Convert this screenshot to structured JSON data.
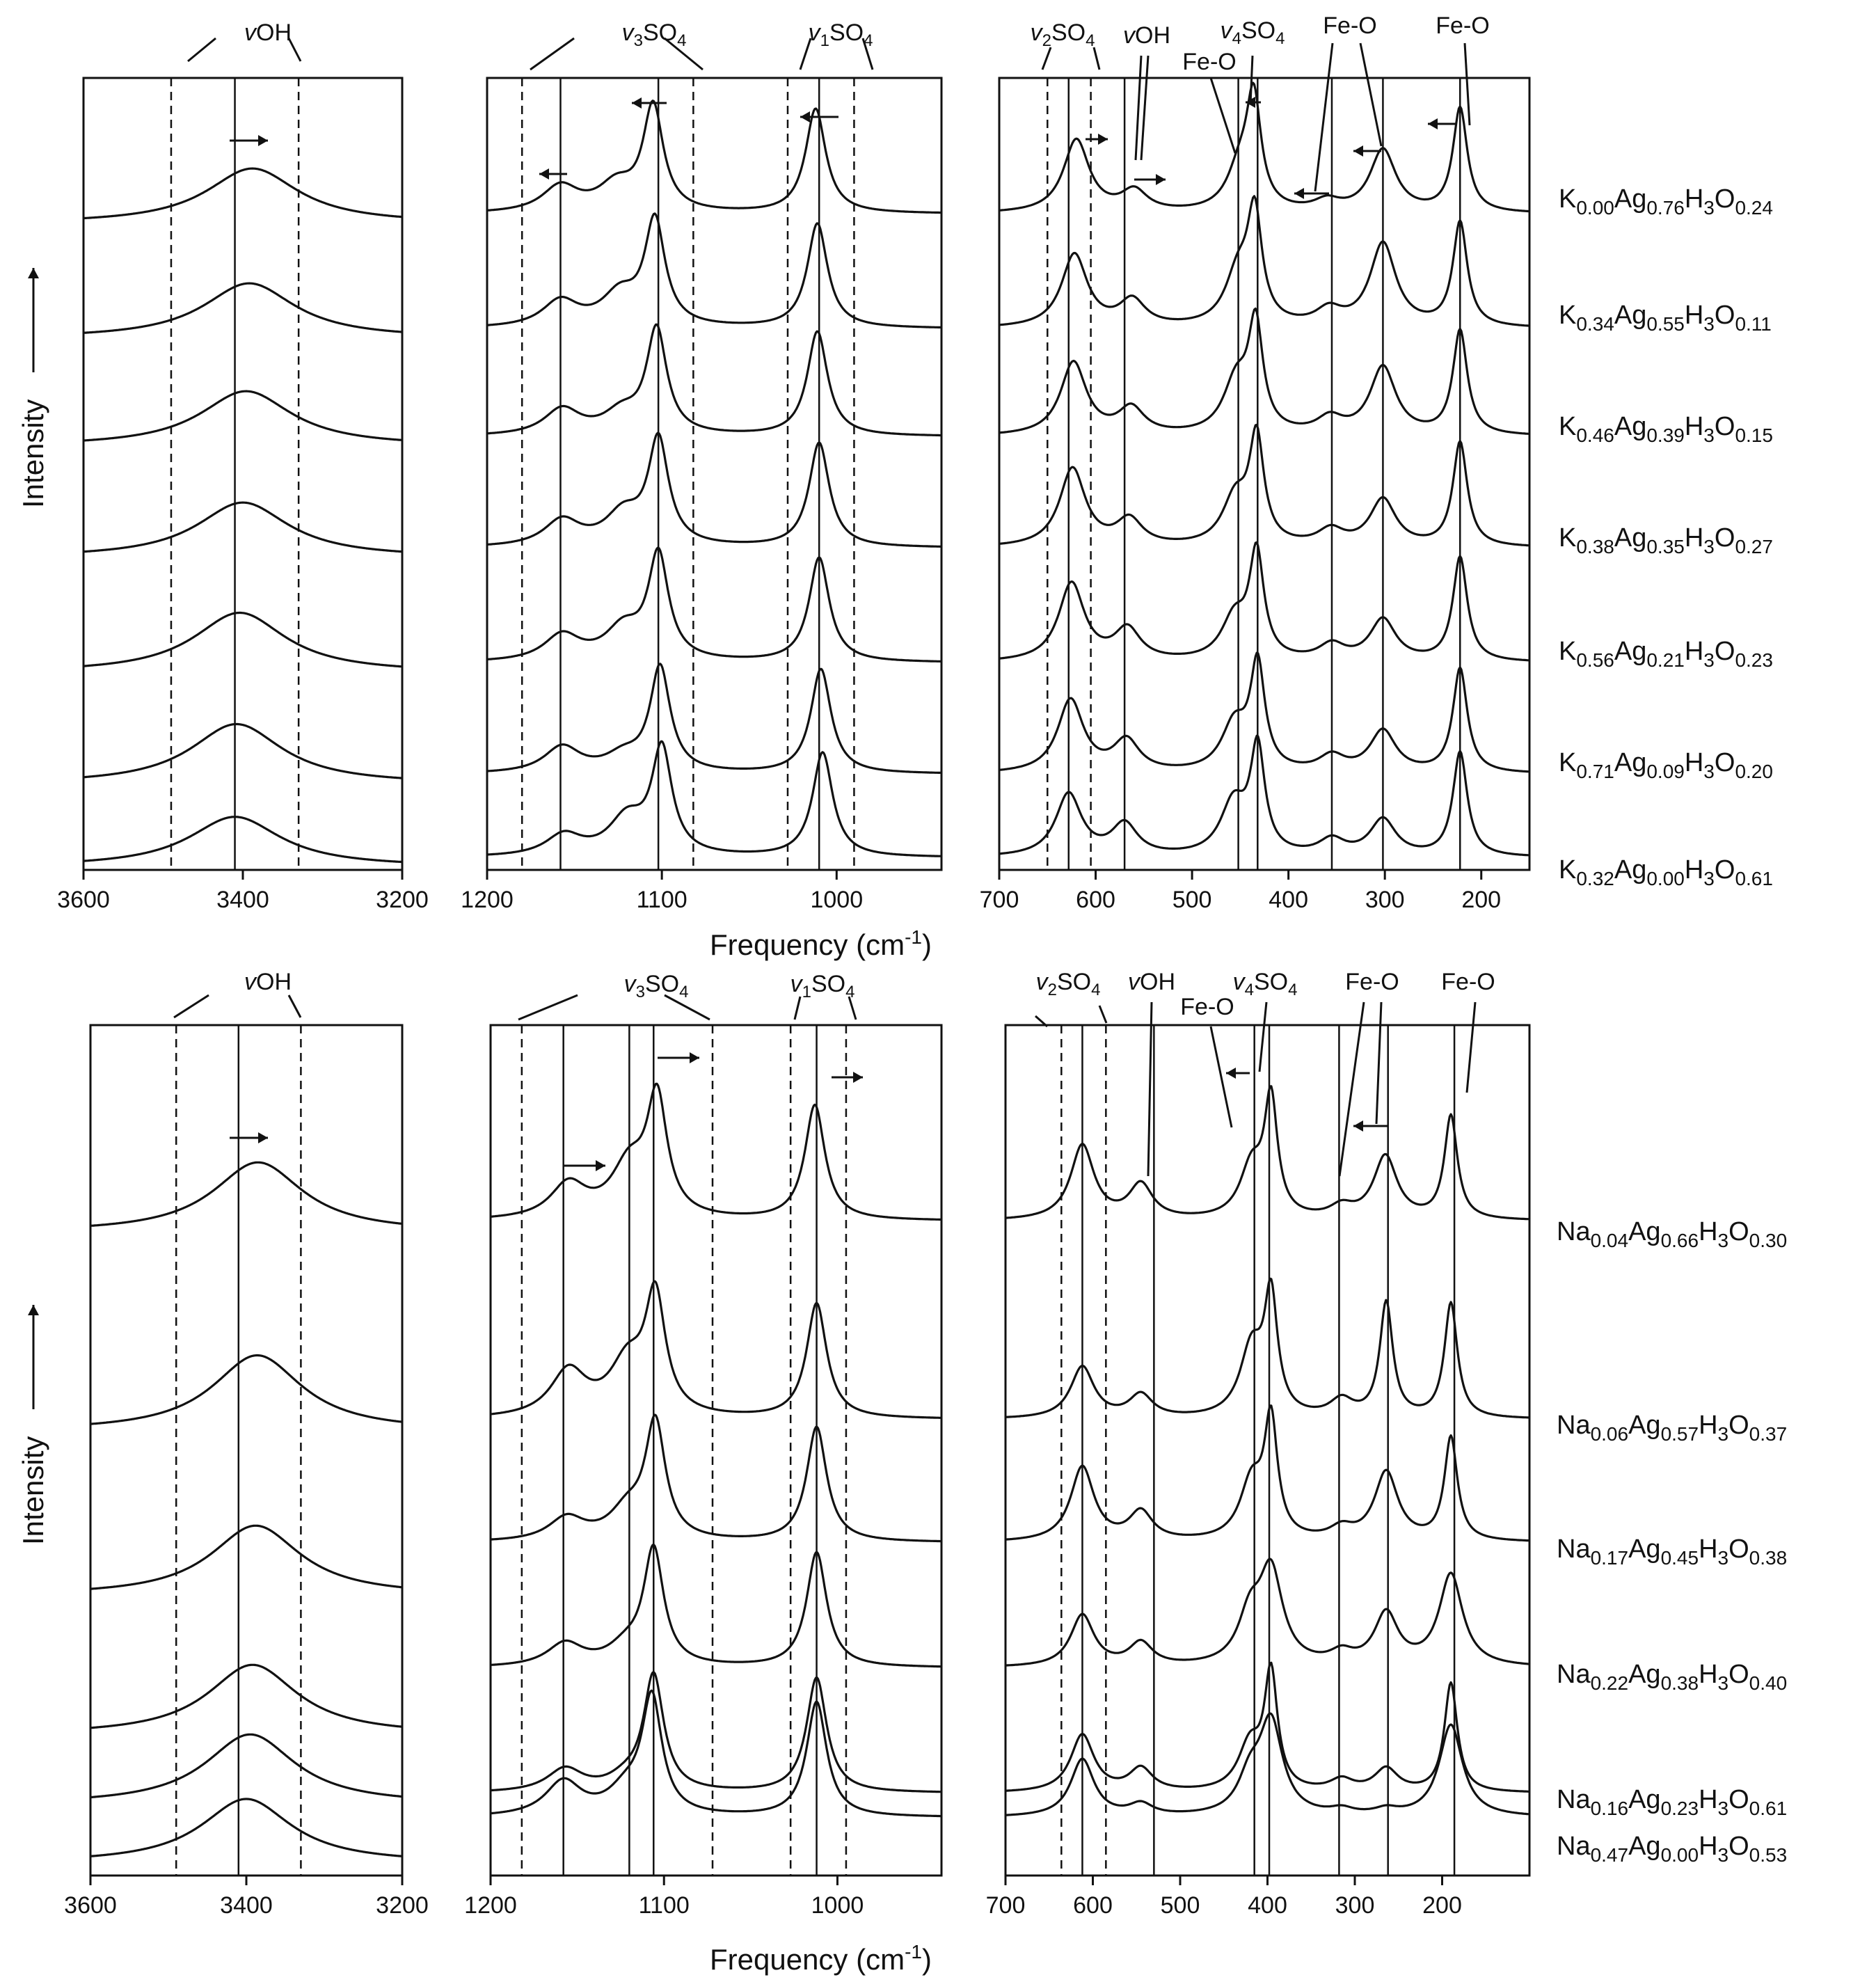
{
  "figure": {
    "x_axis_label": "Frequency (cm",
    "x_axis_label_sup": "-1",
    "x_axis_label_end": ")",
    "y_axis_label": "Intensity"
  },
  "chart_data": [
    {
      "type": "line",
      "group": "K",
      "panel": "vOH",
      "xlim": [
        3600,
        3200
      ],
      "ticks": [
        3600,
        3400,
        3200
      ],
      "solid_lines": [
        3410
      ],
      "dashed_lines": [
        3490,
        3330
      ],
      "series": [
        {
          "center": 3388,
          "height": 0.55
        },
        {
          "center": 3392,
          "height": 0.55
        },
        {
          "center": 3396,
          "height": 0.55
        },
        {
          "center": 3400,
          "height": 0.55
        },
        {
          "center": 3404,
          "height": 0.6
        },
        {
          "center": 3408,
          "height": 0.6
        },
        {
          "center": 3410,
          "height": 0.5
        }
      ]
    },
    {
      "type": "line",
      "group": "K",
      "panel": "SO4 stretch",
      "xlim": [
        1200,
        940
      ],
      "ticks": [
        1200,
        1100,
        1000
      ],
      "solid_lines": [
        1158,
        1102,
        1010
      ],
      "dashed_lines": [
        1180,
        1082,
        1028,
        990
      ],
      "series": [
        {
          "peaks": [
            [
              1158,
              0.25
            ],
            [
              1126,
              0.25
            ],
            [
              1105,
              1.0
            ],
            [
              1012,
              1.0
            ]
          ]
        },
        {
          "peaks": [
            [
              1158,
              0.25
            ],
            [
              1124,
              0.3
            ],
            [
              1104,
              1.0
            ],
            [
              1011,
              1.0
            ]
          ]
        },
        {
          "peaks": [
            [
              1157,
              0.25
            ],
            [
              1123,
              0.2
            ],
            [
              1103,
              1.0
            ],
            [
              1011,
              1.0
            ]
          ]
        },
        {
          "peaks": [
            [
              1157,
              0.25
            ],
            [
              1122,
              0.3
            ],
            [
              1102,
              1.0
            ],
            [
              1010,
              1.0
            ]
          ]
        },
        {
          "peaks": [
            [
              1157,
              0.25
            ],
            [
              1122,
              0.3
            ],
            [
              1102,
              1.0
            ],
            [
              1010,
              1.0
            ]
          ]
        },
        {
          "peaks": [
            [
              1157,
              0.25
            ],
            [
              1122,
              0.15
            ],
            [
              1101,
              1.0
            ],
            [
              1009,
              1.0
            ]
          ]
        },
        {
          "peaks": [
            [
              1156,
              0.2
            ],
            [
              1120,
              0.35
            ],
            [
              1100,
              1.0
            ],
            [
              1008,
              1.0
            ]
          ]
        }
      ]
    },
    {
      "type": "line",
      "group": "K",
      "panel": "lattice",
      "xlim": [
        700,
        150
      ],
      "ticks": [
        700,
        600,
        500,
        400,
        300,
        200
      ],
      "solid_lines": [
        628,
        570,
        452,
        432,
        355,
        302,
        222
      ],
      "dashed_lines": [
        650,
        605
      ],
      "series": [
        {
          "peaks": [
            [
              620,
              0.7
            ],
            [
              560,
              0.2
            ],
            [
              450,
              0.4
            ],
            [
              436,
              1.0
            ],
            [
              360,
              0.1
            ],
            [
              302,
              0.6
            ],
            [
              222,
              1.0
            ]
          ]
        },
        {
          "peaks": [
            [
              622,
              0.7
            ],
            [
              562,
              0.25
            ],
            [
              452,
              0.5
            ],
            [
              435,
              1.0
            ],
            [
              358,
              0.15
            ],
            [
              302,
              0.8
            ],
            [
              222,
              1.0
            ]
          ]
        },
        {
          "peaks": [
            [
              623,
              0.7
            ],
            [
              563,
              0.25
            ],
            [
              454,
              0.5
            ],
            [
              434,
              1.0
            ],
            [
              357,
              0.15
            ],
            [
              302,
              0.65
            ],
            [
              222,
              1.0
            ]
          ]
        },
        {
          "peaks": [
            [
              624,
              0.75
            ],
            [
              565,
              0.25
            ],
            [
              455,
              0.45
            ],
            [
              433,
              1.0
            ],
            [
              356,
              0.15
            ],
            [
              302,
              0.45
            ],
            [
              222,
              1.0
            ]
          ]
        },
        {
          "peaks": [
            [
              625,
              0.75
            ],
            [
              567,
              0.3
            ],
            [
              456,
              0.4
            ],
            [
              433,
              1.0
            ],
            [
              355,
              0.15
            ],
            [
              302,
              0.4
            ],
            [
              222,
              1.0
            ]
          ]
        },
        {
          "peaks": [
            [
              626,
              0.7
            ],
            [
              568,
              0.3
            ],
            [
              456,
              0.45
            ],
            [
              432,
              1.0
            ],
            [
              355,
              0.15
            ],
            [
              302,
              0.4
            ],
            [
              222,
              1.0
            ]
          ]
        },
        {
          "peaks": [
            [
              628,
              0.6
            ],
            [
              570,
              0.3
            ],
            [
              457,
              0.5
            ],
            [
              432,
              1.0
            ],
            [
              355,
              0.15
            ],
            [
              302,
              0.35
            ],
            [
              222,
              1.0
            ]
          ]
        }
      ]
    },
    {
      "type": "line",
      "group": "Na",
      "panel": "vOH",
      "xlim": [
        3600,
        3200
      ],
      "ticks": [
        3600,
        3400,
        3200
      ],
      "solid_lines": [
        3410
      ],
      "dashed_lines": [
        3490,
        3330
      ],
      "series": [
        {
          "center": 3385,
          "height": 0.6
        },
        {
          "center": 3386,
          "height": 0.65
        },
        {
          "center": 3388,
          "height": 0.6
        },
        {
          "center": 3392,
          "height": 0.6
        },
        {
          "center": 3395,
          "height": 0.6
        },
        {
          "center": 3400,
          "height": 0.55
        }
      ]
    },
    {
      "type": "line",
      "group": "Na",
      "panel": "SO4 stretch",
      "xlim": [
        1200,
        940
      ],
      "ticks": [
        1200,
        1100,
        1000
      ],
      "solid_lines": [
        1158,
        1120,
        1106,
        1012
      ],
      "dashed_lines": [
        1182,
        1072,
        1027,
        995
      ],
      "series": [
        {
          "peaks": [
            [
              1155,
              0.3
            ],
            [
              1120,
              0.45
            ],
            [
              1104,
              1.0
            ],
            [
              1013,
              1.0
            ]
          ]
        },
        {
          "peaks": [
            [
              1155,
              0.4
            ],
            [
              1121,
              0.45
            ],
            [
              1105,
              1.0
            ],
            [
              1012,
              1.0
            ]
          ]
        },
        {
          "peaks": [
            [
              1156,
              0.2
            ],
            [
              1121,
              0.25
            ],
            [
              1105,
              1.0
            ],
            [
              1012,
              1.0
            ]
          ]
        },
        {
          "peaks": [
            [
              1157,
              0.2
            ],
            [
              1122,
              0.15
            ],
            [
              1106,
              1.0
            ],
            [
              1012,
              1.0
            ]
          ]
        },
        {
          "peaks": [
            [
              1157,
              0.2
            ],
            [
              1122,
              0.1
            ],
            [
              1106,
              1.0
            ],
            [
              1012,
              1.0
            ]
          ]
        },
        {
          "peaks": [
            [
              1158,
              0.3
            ],
            [
              1122,
              0.2
            ],
            [
              1107,
              1.0
            ],
            [
              1012,
              1.0
            ]
          ]
        }
      ]
    },
    {
      "type": "line",
      "group": "Na",
      "panel": "lattice",
      "xlim": [
        700,
        100
      ],
      "ticks": [
        700,
        600,
        500,
        400,
        300,
        200
      ],
      "solid_lines": [
        612,
        530,
        415,
        398,
        318,
        262,
        186
      ],
      "dashed_lines": [
        636,
        585
      ],
      "series": [
        {
          "peaks": [
            [
              612,
              0.65
            ],
            [
              545,
              0.3
            ],
            [
              418,
              0.45
            ],
            [
              396,
              1.0
            ],
            [
              315,
              0.1
            ],
            [
              265,
              0.55
            ],
            [
              190,
              0.9
            ]
          ]
        },
        {
          "peaks": [
            [
              612,
              0.45
            ],
            [
              545,
              0.2
            ],
            [
              418,
              0.6
            ],
            [
              396,
              1.0
            ],
            [
              315,
              0.15
            ],
            [
              264,
              1.0
            ],
            [
              190,
              1.0
            ]
          ]
        },
        {
          "peaks": [
            [
              612,
              0.65
            ],
            [
              545,
              0.25
            ],
            [
              418,
              0.5
            ],
            [
              396,
              1.0
            ],
            [
              315,
              0.1
            ],
            [
              264,
              0.6
            ],
            [
              190,
              0.9
            ]
          ]
        },
        {
          "peaks": [
            [
              612,
              0.45
            ],
            [
              545,
              0.2
            ],
            [
              420,
              0.4
            ],
            [
              396,
              0.8
            ],
            [
              315,
              0.1
            ],
            [
              264,
              0.45
            ],
            [
              190,
              0.8
            ]
          ]
        },
        {
          "peaks": [
            [
              612,
              0.5
            ],
            [
              545,
              0.2
            ],
            [
              420,
              0.4
            ],
            [
              396,
              1.0
            ],
            [
              315,
              0.1
            ],
            [
              264,
              0.2
            ],
            [
              190,
              0.95
            ]
          ]
        },
        {
          "peaks": [
            [
              612,
              0.5
            ],
            [
              545,
              0.1
            ],
            [
              420,
              0.3
            ],
            [
              396,
              0.8
            ],
            [
              315,
              0.05
            ],
            [
              264,
              0.05
            ],
            [
              190,
              0.8
            ]
          ]
        }
      ]
    }
  ],
  "annotations": {
    "top_vOH": "vOH",
    "top_v3SO4": "v3SO4",
    "top_v1SO4": "v1SO4",
    "top_v2SO4": "v2SO4",
    "top_vOH_lattice": "vOH",
    "top_FeO_a": "Fe-O",
    "top_v4SO4": "v4SO4",
    "top_FeO_b": "Fe-O",
    "top_FeO_c": "Fe-O",
    "bot_vOH": "vOH",
    "bot_v3SO4": "v3SO4",
    "bot_v1SO4": "v1SO4",
    "bot_v2SO4": "v2SO4",
    "bot_vOH_lattice": "vOH",
    "bot_FeO_a": "Fe-O",
    "bot_v4SO4": "v4SO4",
    "bot_FeO_b": "Fe-O",
    "bot_FeO_c": "Fe-O"
  },
  "sample_labels_K": [
    [
      [
        "K",
        ""
      ],
      [
        "0.00",
        "s"
      ],
      [
        "Ag",
        ""
      ],
      [
        "0.76",
        "s"
      ],
      [
        "H",
        ""
      ],
      [
        "3",
        "s"
      ],
      [
        "O",
        ""
      ],
      [
        "0.24",
        "s"
      ]
    ],
    [
      [
        "K",
        ""
      ],
      [
        "0.34",
        "s"
      ],
      [
        "Ag",
        ""
      ],
      [
        "0.55",
        "s"
      ],
      [
        "H",
        ""
      ],
      [
        "3",
        "s"
      ],
      [
        "O",
        ""
      ],
      [
        "0.11",
        "s"
      ]
    ],
    [
      [
        "K",
        ""
      ],
      [
        "0.46",
        "s"
      ],
      [
        "Ag",
        ""
      ],
      [
        "0.39",
        "s"
      ],
      [
        "H",
        ""
      ],
      [
        "3",
        "s"
      ],
      [
        "O",
        ""
      ],
      [
        "0.15",
        "s"
      ]
    ],
    [
      [
        "K",
        ""
      ],
      [
        "0.38",
        "s"
      ],
      [
        "Ag",
        ""
      ],
      [
        "0.35",
        "s"
      ],
      [
        "H",
        ""
      ],
      [
        "3",
        "s"
      ],
      [
        "O",
        ""
      ],
      [
        "0.27",
        "s"
      ]
    ],
    [
      [
        "K",
        ""
      ],
      [
        "0.56",
        "s"
      ],
      [
        "Ag",
        ""
      ],
      [
        "0.21",
        "s"
      ],
      [
        "H",
        ""
      ],
      [
        "3",
        "s"
      ],
      [
        "O",
        ""
      ],
      [
        "0.23",
        "s"
      ]
    ],
    [
      [
        "K",
        ""
      ],
      [
        "0.71",
        "s"
      ],
      [
        "Ag",
        ""
      ],
      [
        "0.09",
        "s"
      ],
      [
        "H",
        ""
      ],
      [
        "3",
        "s"
      ],
      [
        "O",
        ""
      ],
      [
        "0.20",
        "s"
      ]
    ],
    [
      [
        "K",
        ""
      ],
      [
        "0.32",
        "s"
      ],
      [
        "Ag",
        ""
      ],
      [
        "0.00",
        "s"
      ],
      [
        "H",
        ""
      ],
      [
        "3",
        "s"
      ],
      [
        "O",
        ""
      ],
      [
        "0.61",
        "s"
      ]
    ]
  ],
  "sample_labels_Na": [
    [
      [
        "Na",
        ""
      ],
      [
        "0.04",
        "s"
      ],
      [
        "Ag",
        ""
      ],
      [
        "0.66",
        "s"
      ],
      [
        "H",
        ""
      ],
      [
        "3",
        "s"
      ],
      [
        "O",
        ""
      ],
      [
        "0.30",
        "s"
      ]
    ],
    [
      [
        "Na",
        ""
      ],
      [
        "0.06",
        "s"
      ],
      [
        "Ag",
        ""
      ],
      [
        "0.57",
        "s"
      ],
      [
        "H",
        ""
      ],
      [
        "3",
        "s"
      ],
      [
        "O",
        ""
      ],
      [
        "0.37",
        "s"
      ]
    ],
    [
      [
        "Na",
        ""
      ],
      [
        "0.17",
        "s"
      ],
      [
        "Ag",
        ""
      ],
      [
        "0.45",
        "s"
      ],
      [
        "H",
        ""
      ],
      [
        "3",
        "s"
      ],
      [
        "O",
        ""
      ],
      [
        "0.38",
        "s"
      ]
    ],
    [
      [
        "Na",
        ""
      ],
      [
        "0.22",
        "s"
      ],
      [
        "Ag",
        ""
      ],
      [
        "0.38",
        "s"
      ],
      [
        "H",
        ""
      ],
      [
        "3",
        "s"
      ],
      [
        "O",
        ""
      ],
      [
        "0.40",
        "s"
      ]
    ],
    [
      [
        "Na",
        ""
      ],
      [
        "0.16",
        "s"
      ],
      [
        "Ag",
        ""
      ],
      [
        "0.23",
        "s"
      ],
      [
        "H",
        ""
      ],
      [
        "3",
        "s"
      ],
      [
        "O",
        ""
      ],
      [
        "0.61",
        "s"
      ]
    ],
    [
      [
        "Na",
        ""
      ],
      [
        "0.47",
        "s"
      ],
      [
        "Ag",
        ""
      ],
      [
        "0.00",
        "s"
      ],
      [
        "H",
        ""
      ],
      [
        "3",
        "s"
      ],
      [
        "O",
        ""
      ],
      [
        "0.53",
        "s"
      ]
    ]
  ]
}
